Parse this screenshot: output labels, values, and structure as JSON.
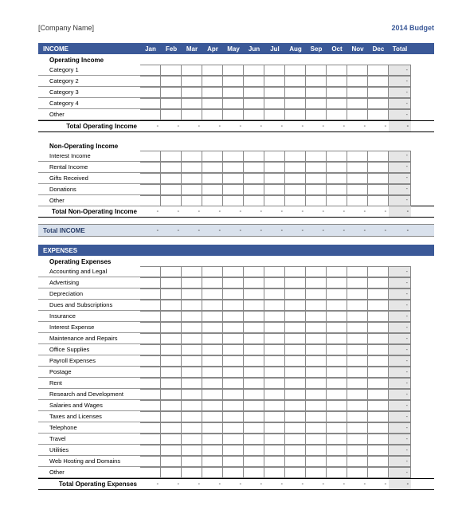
{
  "header": {
    "company": "[Company Name]",
    "title": "2014 Budget"
  },
  "months": [
    "Jan",
    "Feb",
    "Mar",
    "Apr",
    "May",
    "Jun",
    "Jul",
    "Aug",
    "Sep",
    "Oct",
    "Nov",
    "Dec"
  ],
  "total_label": "Total",
  "dash": "-",
  "colors": {
    "header_bg": "#3b5998",
    "header_text": "#ffffff",
    "grandtotal_bg": "#d9e1ec",
    "totalcol_bg": "#e6e6e6",
    "border": "#888888",
    "title_color": "#3b5998"
  },
  "income": {
    "section_label": "INCOME",
    "operating": {
      "title": "Operating Income",
      "rows": [
        "Category 1",
        "Category 2",
        "Category 3",
        "Category 4",
        "Other"
      ],
      "subtotal": "Total Operating Income"
    },
    "nonoperating": {
      "title": "Non-Operating Income",
      "rows": [
        "Interest Income",
        "Rental Income",
        "Gifts Received",
        "Donations",
        "Other"
      ],
      "subtotal": "Total Non-Operating Income"
    },
    "grandtotal": "Total INCOME"
  },
  "expenses": {
    "section_label": "EXPENSES",
    "operating": {
      "title": "Operating Expenses",
      "rows": [
        "Accounting and Legal",
        "Advertising",
        "Depreciation",
        "Dues and Subscriptions",
        "Insurance",
        "Interest Expense",
        "Maintenance and Repairs",
        "Office Supplies",
        "Payroll Expenses",
        "Postage",
        "Rent",
        "Research and Development",
        "Salaries and Wages",
        "Taxes and Licenses",
        "Telephone",
        "Travel",
        "Utilities",
        "Web Hosting and Domains",
        "Other"
      ],
      "subtotal": "Total Operating Expenses"
    }
  }
}
